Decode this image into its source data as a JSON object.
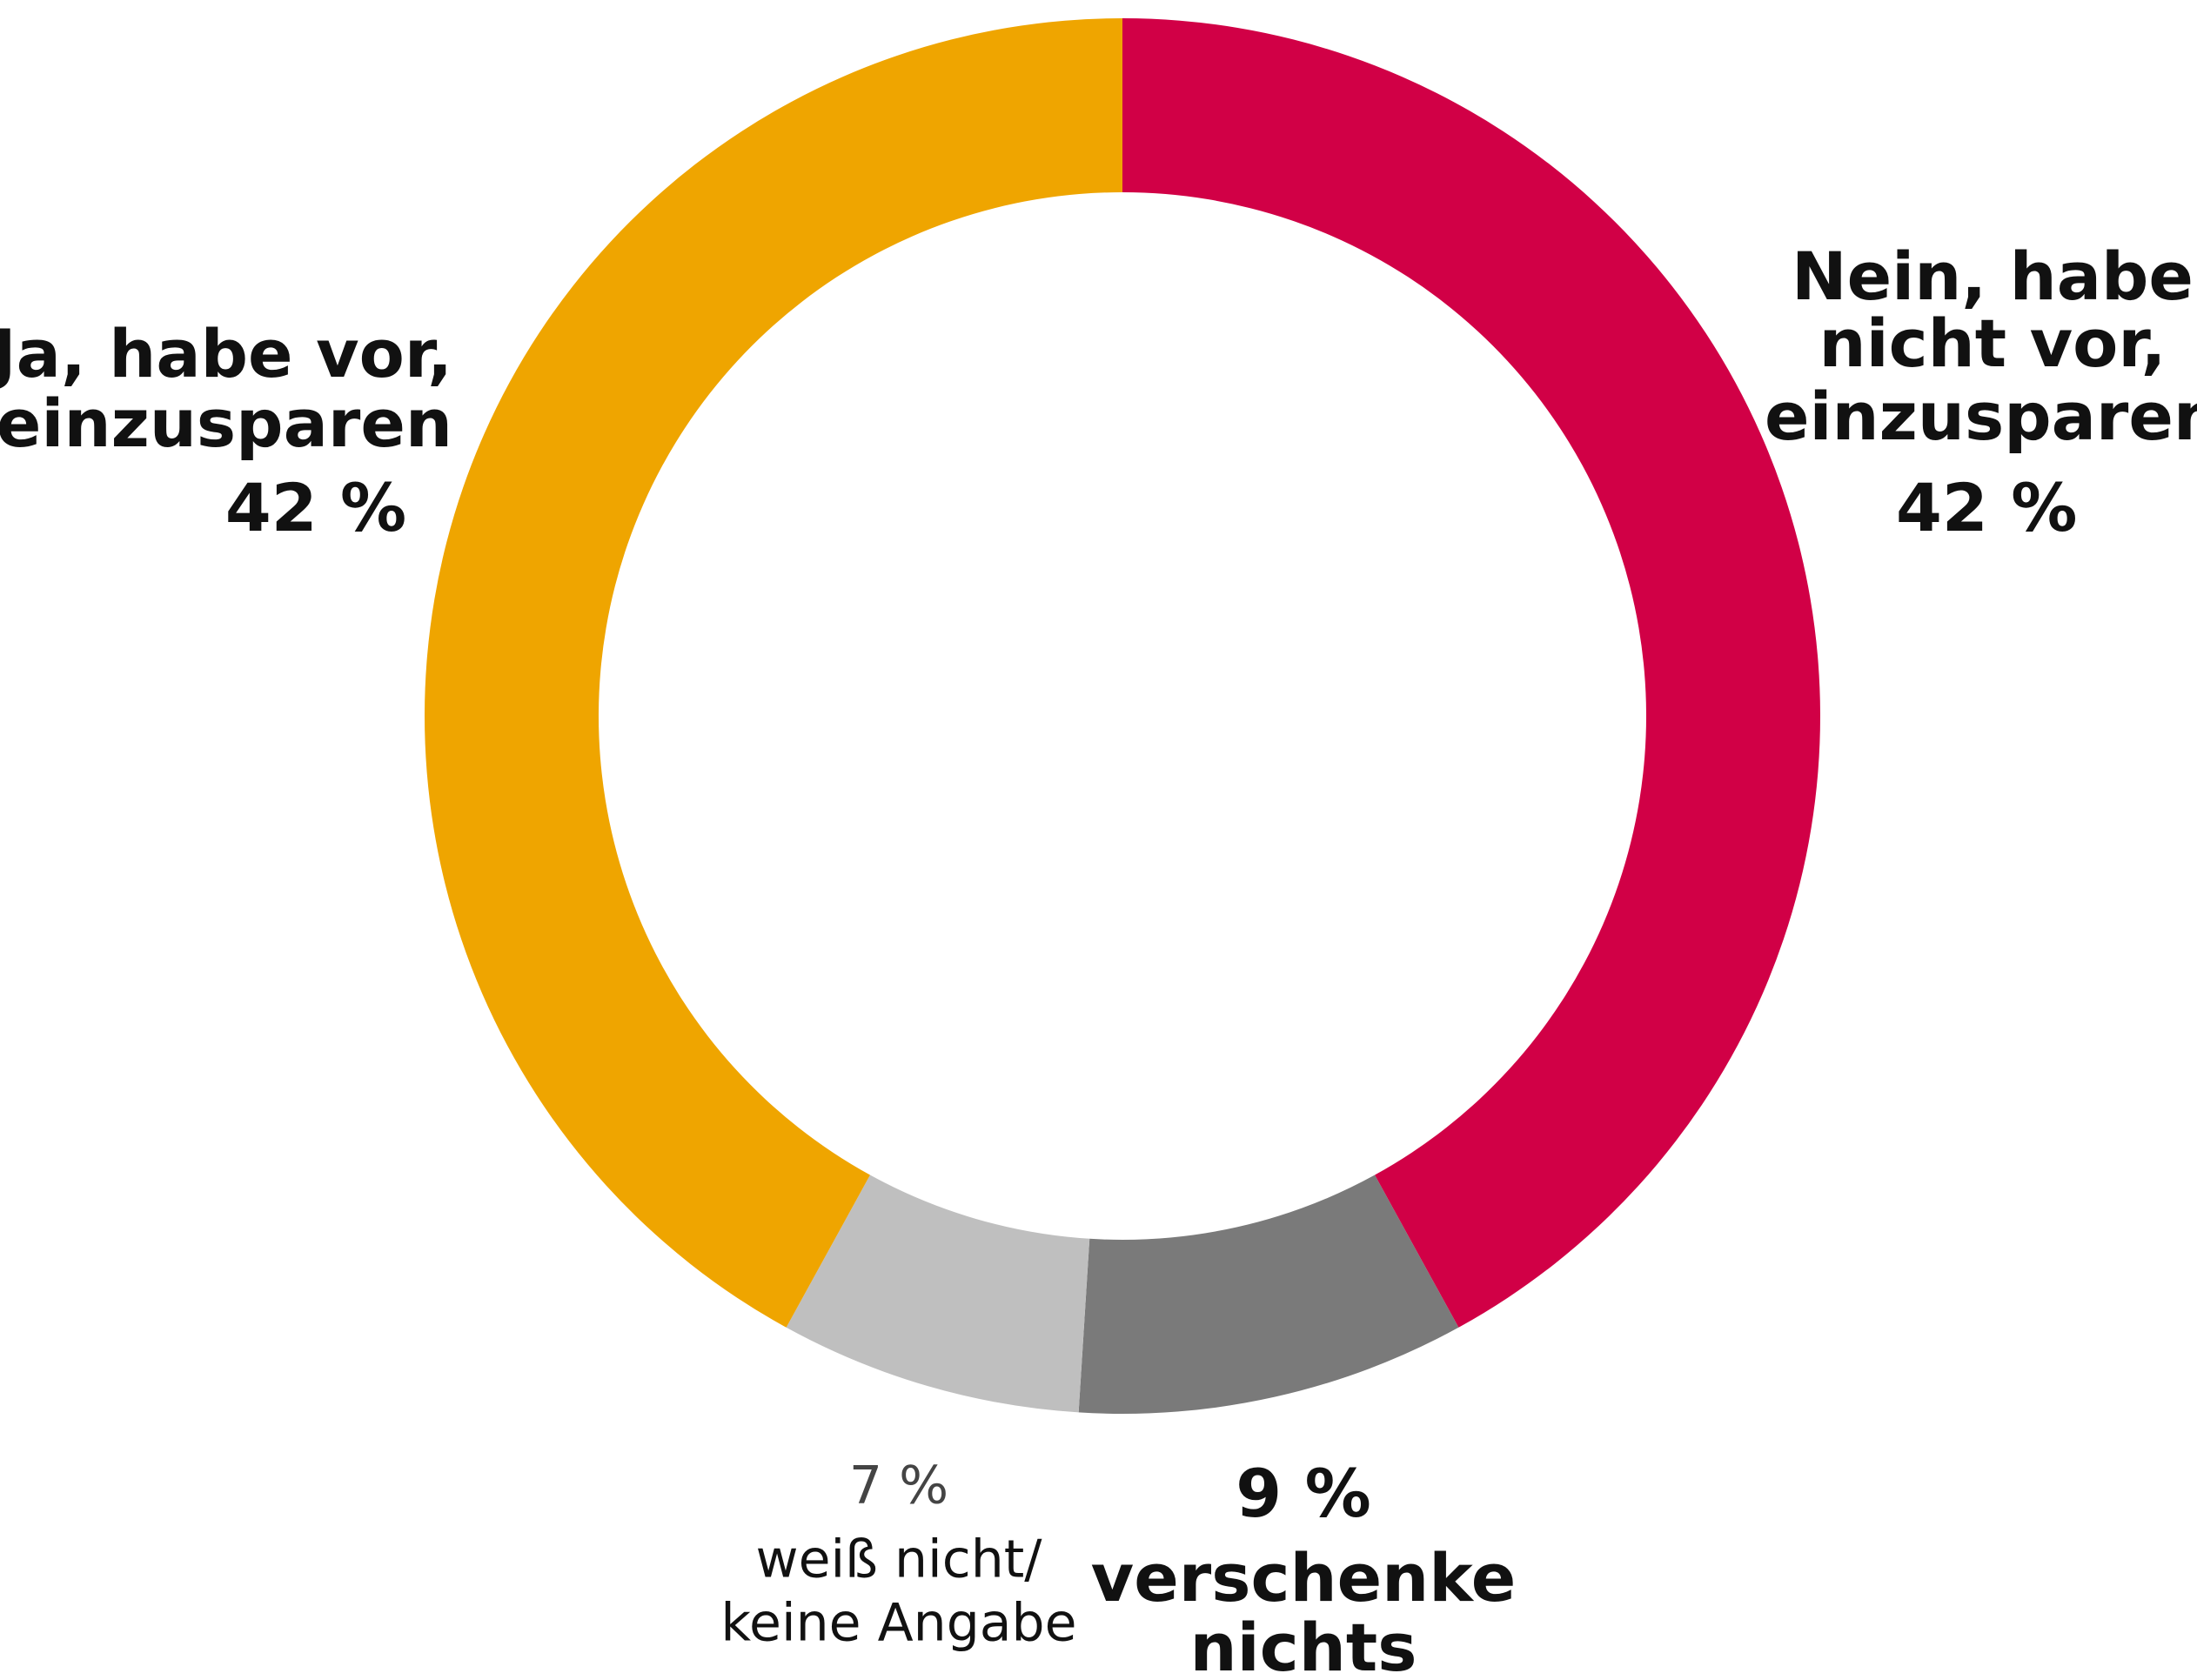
{
  "chart_data": {
    "type": "donut",
    "categories": [
      [
        "Nein, habe",
        "nicht vor,",
        "einzusparen"
      ],
      [
        "verschenke",
        "nichts"
      ],
      [
        "weiß nicht/",
        "keine Angabe"
      ],
      [
        "Ja, habe vor,",
        "einzusparen"
      ]
    ],
    "values": [
      42,
      9,
      7,
      42
    ],
    "value_labels": [
      "42 %",
      "9 %",
      "7 %",
      "42 %"
    ],
    "colors": [
      "#d10046",
      "#7a7a7a",
      "#bfbfbf",
      "#efa500"
    ]
  }
}
